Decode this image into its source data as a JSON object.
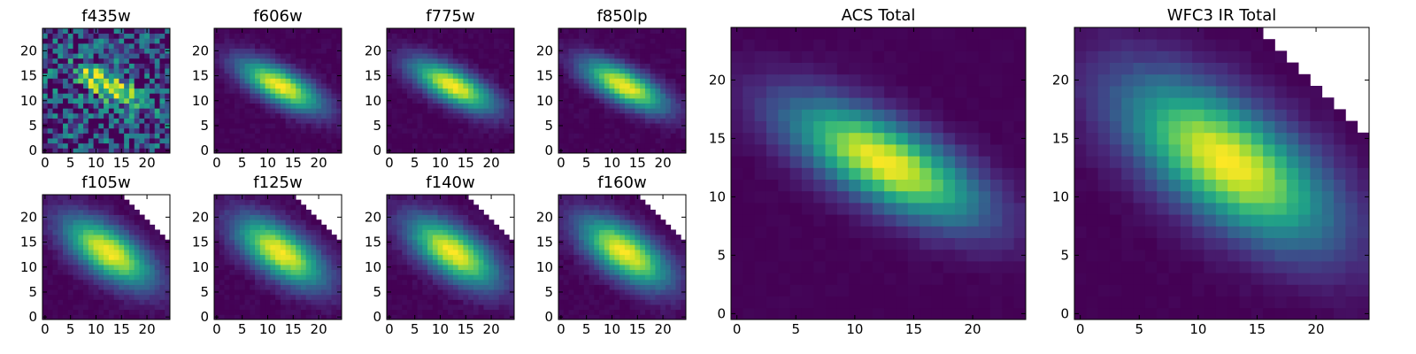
{
  "chart_data": {
    "type": "heatmap",
    "colormap": "viridis",
    "grid": false,
    "legend": "none",
    "image_size": 25,
    "value_range": [
      0,
      1
    ],
    "panels": [
      {
        "title": "f435w",
        "xticks": [
          0,
          5,
          10,
          15,
          20
        ],
        "yticks": [
          0,
          5,
          10,
          15,
          20
        ],
        "xlim": [
          0,
          24
        ],
        "ylim": [
          0,
          24
        ],
        "center": [
          12.5,
          13
        ],
        "sigma_major": 5.0,
        "sigma_minor": 1.9,
        "angle_deg": -28,
        "noise": 0.4,
        "floor": 0.16,
        "mask_edge": null,
        "artifact_cells": []
      },
      {
        "title": "f606w",
        "xticks": [
          0,
          5,
          10,
          15,
          20
        ],
        "yticks": [
          0,
          5,
          10,
          15,
          20
        ],
        "xlim": [
          0,
          24
        ],
        "ylim": [
          0,
          24
        ],
        "center": [
          12.5,
          13
        ],
        "sigma_major": 6.2,
        "sigma_minor": 2.3,
        "angle_deg": -28,
        "noise": 0.03,
        "floor": 0.0,
        "mask_edge": null,
        "artifact_cells": []
      },
      {
        "title": "f775w",
        "xticks": [
          0,
          5,
          10,
          15,
          20
        ],
        "yticks": [
          0,
          5,
          10,
          15,
          20
        ],
        "xlim": [
          0,
          24
        ],
        "ylim": [
          0,
          24
        ],
        "center": [
          12.5,
          13
        ],
        "sigma_major": 6.2,
        "sigma_minor": 2.3,
        "angle_deg": -28,
        "noise": 0.03,
        "floor": 0.0,
        "mask_edge": null,
        "artifact_cells": []
      },
      {
        "title": "f850lp",
        "xticks": [
          0,
          5,
          10,
          15,
          20
        ],
        "yticks": [
          0,
          5,
          10,
          15,
          20
        ],
        "xlim": [
          0,
          24
        ],
        "ylim": [
          0,
          24
        ],
        "center": [
          12.5,
          13
        ],
        "sigma_major": 6.2,
        "sigma_minor": 2.3,
        "angle_deg": -28,
        "noise": 0.03,
        "floor": 0.0,
        "mask_edge": null,
        "artifact_cells": []
      },
      {
        "title": "f105w",
        "xticks": [
          0,
          5,
          10,
          15,
          20
        ],
        "yticks": [
          0,
          5,
          10,
          15,
          20
        ],
        "xlim": [
          0,
          24
        ],
        "ylim": [
          0,
          24
        ],
        "center": [
          12.5,
          13
        ],
        "sigma_major": 7.0,
        "sigma_minor": 3.2,
        "angle_deg": -35,
        "noise": 0.03,
        "floor": 0.0,
        "mask_edge": 39,
        "artifact_cells": []
      },
      {
        "title": "f125w",
        "xticks": [
          0,
          5,
          10,
          15,
          20
        ],
        "yticks": [
          0,
          5,
          10,
          15,
          20
        ],
        "xlim": [
          0,
          24
        ],
        "ylim": [
          0,
          24
        ],
        "center": [
          12.5,
          13
        ],
        "sigma_major": 7.0,
        "sigma_minor": 3.2,
        "angle_deg": -35,
        "noise": 0.03,
        "floor": 0.0,
        "mask_edge": 39,
        "artifact_cells": [
          [
            17,
            24
          ],
          [
            18,
            24
          ]
        ]
      },
      {
        "title": "f140w",
        "xticks": [
          0,
          5,
          10,
          15,
          20
        ],
        "yticks": [
          0,
          5,
          10,
          15,
          20
        ],
        "xlim": [
          0,
          24
        ],
        "ylim": [
          0,
          24
        ],
        "center": [
          12.5,
          13
        ],
        "sigma_major": 7.0,
        "sigma_minor": 3.2,
        "angle_deg": -35,
        "noise": 0.03,
        "floor": 0.0,
        "mask_edge": 39,
        "artifact_cells": [
          [
            17,
            24
          ]
        ]
      },
      {
        "title": "f160w",
        "xticks": [
          0,
          5,
          10,
          15,
          20
        ],
        "yticks": [
          0,
          5,
          10,
          15,
          20
        ],
        "xlim": [
          0,
          24
        ],
        "ylim": [
          0,
          24
        ],
        "center": [
          12.5,
          13
        ],
        "sigma_major": 7.0,
        "sigma_minor": 3.2,
        "angle_deg": -35,
        "noise": 0.03,
        "floor": 0.0,
        "mask_edge": 39,
        "artifact_cells": [
          [
            17,
            23
          ],
          [
            17,
            24
          ],
          [
            18,
            24
          ]
        ]
      },
      {
        "title": "ACS Total",
        "xticks": [
          0,
          5,
          10,
          15,
          20
        ],
        "yticks": [
          0,
          5,
          10,
          15,
          20
        ],
        "xlim": [
          0,
          24
        ],
        "ylim": [
          0,
          24
        ],
        "center": [
          12.5,
          13
        ],
        "sigma_major": 6.2,
        "sigma_minor": 2.3,
        "angle_deg": -28,
        "noise": 0.015,
        "floor": 0.0,
        "mask_edge": null,
        "artifact_cells": []
      },
      {
        "title": "WFC3 IR Total",
        "xticks": [
          0,
          5,
          10,
          15,
          20
        ],
        "yticks": [
          0,
          5,
          10,
          15,
          20
        ],
        "xlim": [
          0,
          24
        ],
        "ylim": [
          0,
          24
        ],
        "center": [
          12.5,
          13
        ],
        "sigma_major": 7.0,
        "sigma_minor": 3.2,
        "angle_deg": -35,
        "noise": 0.015,
        "floor": 0.0,
        "mask_edge": 39,
        "artifact_cells": []
      }
    ]
  }
}
